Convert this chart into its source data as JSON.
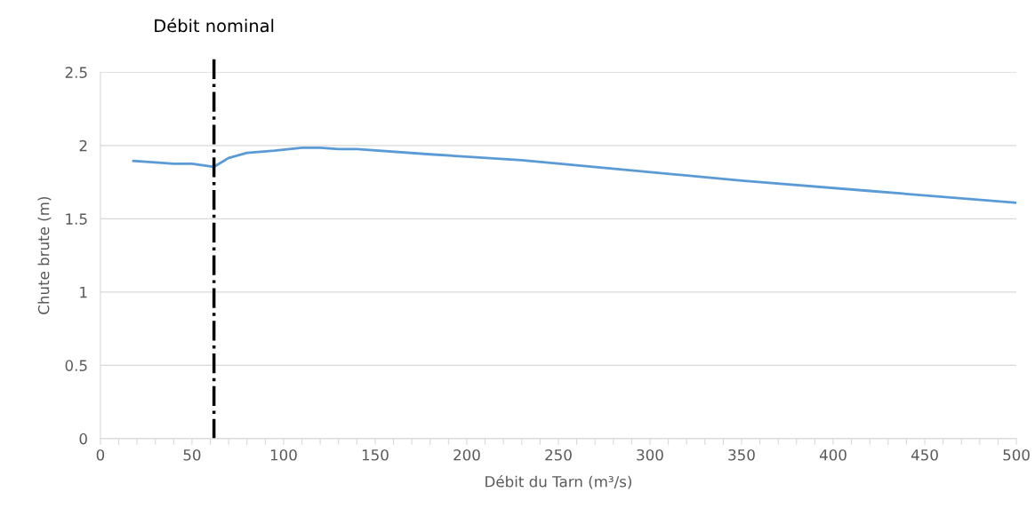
{
  "chart_data": {
    "type": "line",
    "xlabel": "Débit du Tarn (m³/s)",
    "ylabel": "Chute brute (m)",
    "x": [
      18,
      30,
      40,
      50,
      62,
      70,
      80,
      95,
      110,
      120,
      130,
      140,
      180,
      230,
      290,
      350,
      420,
      500
    ],
    "series": [
      {
        "color": "#5b9bd5",
        "values": [
          1.895,
          1.885,
          1.875,
          1.875,
          1.855,
          1.915,
          1.95,
          1.965,
          1.985,
          1.985,
          1.975,
          1.975,
          1.94,
          1.9,
          1.83,
          1.76,
          1.69,
          1.61
        ]
      }
    ],
    "xlim": [
      0,
      500
    ],
    "ylim": [
      0,
      2.5
    ],
    "xticks": [
      0,
      {
        "value": 10,
        "label": null
      },
      {
        "value": 20,
        "label": null
      },
      {
        "value": 30,
        "label": null
      },
      {
        "value": 40,
        "label": null
      },
      50,
      {
        "value": 60,
        "label": null
      },
      {
        "value": 70,
        "label": null
      },
      {
        "value": 80,
        "label": null
      },
      {
        "value": 90,
        "label": null
      },
      100,
      {
        "value": 110,
        "label": null
      },
      {
        "value": 120,
        "label": null
      },
      {
        "value": 130,
        "label": null
      },
      {
        "value": 140,
        "label": null
      },
      150,
      {
        "value": 160,
        "label": null
      },
      {
        "value": 170,
        "label": null
      },
      {
        "value": 180,
        "label": null
      },
      {
        "value": 190,
        "label": null
      },
      200,
      {
        "value": 210,
        "label": null
      },
      {
        "value": 220,
        "label": null
      },
      {
        "value": 230,
        "label": null
      },
      {
        "value": 240,
        "label": null
      },
      250,
      {
        "value": 260,
        "label": null
      },
      {
        "value": 270,
        "label": null
      },
      {
        "value": 280,
        "label": null
      },
      {
        "value": 290,
        "label": null
      },
      300,
      {
        "value": 310,
        "label": null
      },
      {
        "value": 320,
        "label": null
      },
      {
        "value": 330,
        "label": null
      },
      {
        "value": 340,
        "label": null
      },
      350,
      {
        "value": 360,
        "label": null
      },
      {
        "value": 370,
        "label": null
      },
      {
        "value": 380,
        "label": null
      },
      {
        "value": 390,
        "label": null
      },
      400,
      {
        "value": 410,
        "label": null
      },
      {
        "value": 420,
        "label": null
      },
      {
        "value": 430,
        "label": null
      },
      {
        "value": 440,
        "label": null
      },
      450,
      {
        "value": 460,
        "label": null
      },
      {
        "value": 470,
        "label": null
      },
      {
        "value": 480,
        "label": null
      },
      {
        "value": 490,
        "label": null
      },
      500
    ],
    "yticks": [
      0,
      0.5,
      1,
      1.5,
      2,
      2.5
    ],
    "grid": "y",
    "marker": "none",
    "line_style": "solid",
    "ref_lines": [
      {
        "axis": "x",
        "value": 62,
        "label": "Débit nominal",
        "color": "#000000",
        "line_style": "dashdot"
      }
    ]
  }
}
